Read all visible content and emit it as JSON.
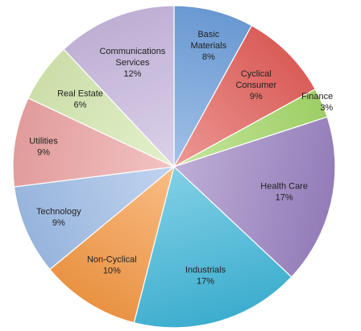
{
  "chart_data": {
    "type": "pie",
    "start": "top",
    "direction": "clockwise",
    "slices": [
      {
        "label": "Basic Materials",
        "pct_text": "8%",
        "value": 8,
        "color": "#6fa0dc"
      },
      {
        "label": "Cyclical Consumer",
        "pct_text": "9%",
        "value": 9,
        "color": "#e4615c"
      },
      {
        "label": "Finance",
        "pct_text": "3%",
        "value": 3,
        "color": "#a6d96a"
      },
      {
        "label": "Health Care",
        "pct_text": "17%",
        "value": 17,
        "color": "#9b82c2"
      },
      {
        "label": "Industrials",
        "pct_text": "17%",
        "value": 17,
        "color": "#3fb6d9"
      },
      {
        "label": "Non-Cyclical",
        "pct_text": "10%",
        "value": 10,
        "color": "#f59a45"
      },
      {
        "label": "Technology",
        "pct_text": "9%",
        "value": 9,
        "color": "#9fbde8"
      },
      {
        "label": "Utilities",
        "pct_text": "9%",
        "value": 9,
        "color": "#eda3a3"
      },
      {
        "label": "Real Estate",
        "pct_text": "6%",
        "value": 6,
        "color": "#d6eab1"
      },
      {
        "label": "Communications Services",
        "pct_text": "12%",
        "value": 12,
        "color": "#c8b8de"
      }
    ]
  }
}
